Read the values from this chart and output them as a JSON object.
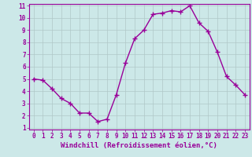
{
  "x": [
    0,
    1,
    2,
    3,
    4,
    5,
    6,
    7,
    8,
    9,
    10,
    11,
    12,
    13,
    14,
    15,
    16,
    17,
    18,
    19,
    20,
    21,
    22,
    23
  ],
  "y": [
    5.0,
    4.9,
    4.2,
    3.4,
    3.0,
    2.2,
    2.2,
    1.5,
    1.7,
    3.7,
    6.3,
    8.3,
    9.0,
    10.3,
    10.4,
    10.6,
    10.5,
    11.0,
    9.6,
    8.9,
    7.2,
    5.2,
    4.5,
    3.7
  ],
  "line_color": "#990099",
  "marker_color": "#990099",
  "bg_color": "#cce8e8",
  "grid_color": "#b0c8c8",
  "xlabel": "Windchill (Refroidissement éolien,°C)",
  "xlabel_color": "#990099",
  "tick_color": "#990099",
  "spine_color": "#990099",
  "ylim": [
    1,
    11
  ],
  "xlim": [
    -0.5,
    23.5
  ],
  "yticks": [
    1,
    2,
    3,
    4,
    5,
    6,
    7,
    8,
    9,
    10,
    11
  ],
  "xticks": [
    0,
    1,
    2,
    3,
    4,
    5,
    6,
    7,
    8,
    9,
    10,
    11,
    12,
    13,
    14,
    15,
    16,
    17,
    18,
    19,
    20,
    21,
    22,
    23
  ],
  "marker_size": 2.5,
  "line_width": 1.0,
  "xlabel_fontsize": 6.5,
  "tick_fontsize": 5.5
}
